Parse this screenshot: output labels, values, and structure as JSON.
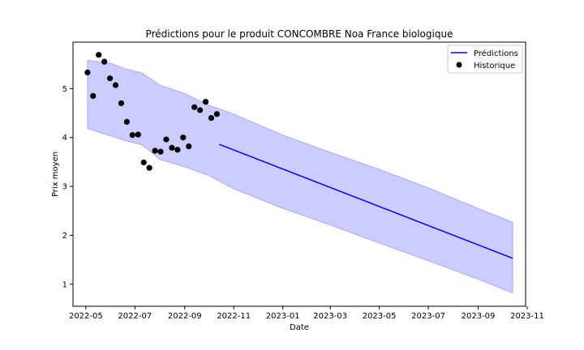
{
  "chart_data": {
    "type": "line",
    "title": "Prédictions pour le produit CONCOMBRE Noa France biologique",
    "xlabel": "Date",
    "ylabel": "Prix moyen",
    "xlim": [
      "2022-04-15",
      "2023-10-30"
    ],
    "ylim": [
      0.55,
      5.95
    ],
    "x_ticks": [
      "2022-05-01",
      "2022-07-01",
      "2022-09-01",
      "2022-11-01",
      "2023-01-01",
      "2023-03-01",
      "2023-05-01",
      "2023-07-01",
      "2023-09-01",
      "2023-11-01"
    ],
    "x_tick_labels": [
      "2022-05",
      "2022-07",
      "2022-09",
      "2022-11",
      "2023-01",
      "2023-03",
      "2023-05",
      "2023-07",
      "2023-09",
      "2023-11"
    ],
    "y_ticks": [
      1,
      2,
      3,
      4,
      5
    ],
    "y_tick_labels": [
      "1",
      "2",
      "3",
      "4",
      "5"
    ],
    "grid": false,
    "legend": {
      "position": "top-right",
      "entries": [
        {
          "label": "Prédictions",
          "marker": "line",
          "color": "#0000ff"
        },
        {
          "label": "Historique",
          "marker": "dot",
          "color": "#000000"
        }
      ]
    },
    "series": [
      {
        "name": "Prédictions",
        "kind": "line",
        "color": "#0000ff",
        "x": [
          "2022-10-14",
          "2023-10-14"
        ],
        "y": [
          3.86,
          1.53
        ]
      },
      {
        "name": "Historique",
        "kind": "scatter",
        "color": "#000000",
        "x": [
          "2022-05-03",
          "2022-05-10",
          "2022-05-17",
          "2022-05-24",
          "2022-05-31",
          "2022-06-07",
          "2022-06-14",
          "2022-06-21",
          "2022-06-28",
          "2022-07-05",
          "2022-07-12",
          "2022-07-19",
          "2022-07-26",
          "2022-08-02",
          "2022-08-09",
          "2022-08-16",
          "2022-08-23",
          "2022-08-30",
          "2022-09-06",
          "2022-09-13",
          "2022-09-20",
          "2022-09-27",
          "2022-10-04",
          "2022-10-11"
        ],
        "y": [
          5.33,
          4.85,
          5.69,
          5.55,
          5.21,
          5.07,
          4.7,
          4.32,
          4.05,
          4.06,
          3.49,
          3.38,
          3.73,
          3.71,
          3.96,
          3.79,
          3.75,
          4.0,
          3.82,
          4.62,
          4.56,
          4.73,
          4.4,
          4.48
        ]
      }
    ],
    "confidence_band": {
      "color": "#0000ff",
      "opacity": 0.2,
      "x": [
        "2022-05-03",
        "2022-06-01",
        "2022-06-20",
        "2022-07-10",
        "2022-08-01",
        "2022-09-01",
        "2022-10-01",
        "2022-11-01",
        "2023-01-01",
        "2023-03-01",
        "2023-05-01",
        "2023-07-01",
        "2023-09-01",
        "2023-10-14"
      ],
      "upper": [
        5.58,
        5.52,
        5.4,
        5.32,
        5.07,
        4.9,
        4.66,
        4.48,
        4.05,
        3.7,
        3.35,
        2.97,
        2.55,
        2.27
      ],
      "lower": [
        4.18,
        4.03,
        3.93,
        3.85,
        3.55,
        3.4,
        3.22,
        2.95,
        2.55,
        2.21,
        1.84,
        1.48,
        1.1,
        0.82
      ]
    }
  }
}
